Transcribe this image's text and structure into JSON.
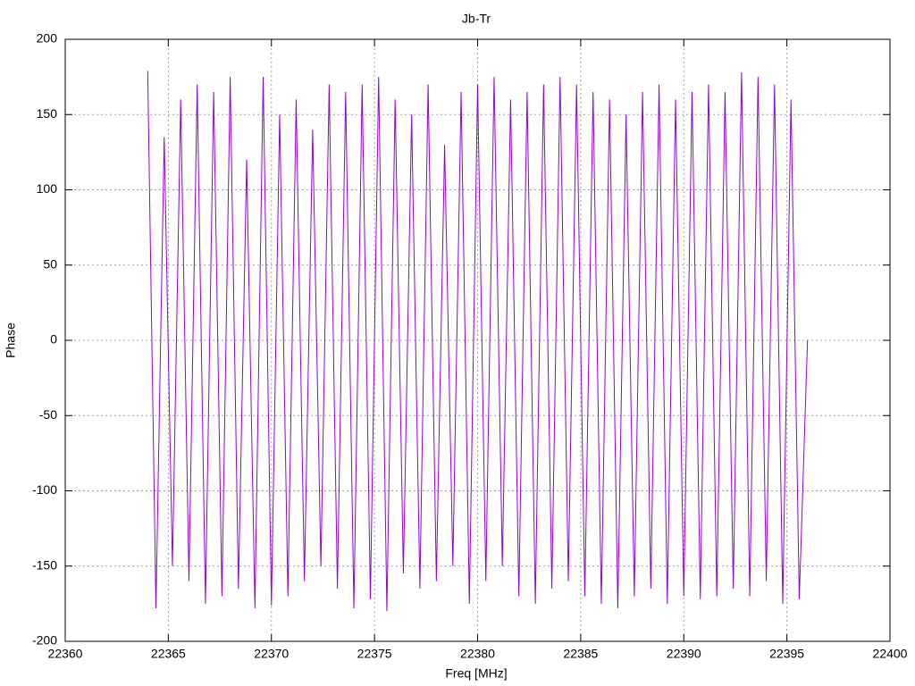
{
  "chart_data": {
    "type": "line",
    "title": "Jb-Tr",
    "x_label": "Freq [MHz]",
    "y_label": "Phase",
    "xlim": [
      22360,
      22400
    ],
    "xticks": [
      22360,
      22365,
      22370,
      22375,
      22380,
      22385,
      22390,
      22395,
      22400
    ],
    "ylim": [
      -200,
      200
    ],
    "yticks": [
      -200,
      -150,
      -100,
      -50,
      0,
      50,
      100,
      150,
      200
    ],
    "grid": true,
    "x": [
      22364,
      22364.4,
      22364.8,
      22365.2,
      22365.6,
      22366,
      22366.4,
      22366.8,
      22367.2,
      22367.6,
      22368,
      22368.4,
      22368.8,
      22369.2,
      22369.6,
      22370,
      22370.4,
      22370.8,
      22371.2,
      22371.6,
      22372,
      22372.4,
      22372.8,
      22373.2,
      22373.6,
      22374,
      22374.4,
      22374.8,
      22375.2,
      22375.6,
      22376,
      22376.4,
      22376.8,
      22377.2,
      22377.6,
      22378,
      22378.4,
      22378.8,
      22379.2,
      22379.6,
      22380,
      22380.4,
      22380.8,
      22381.2,
      22381.6,
      22382,
      22382.4,
      22382.8,
      22383.2,
      22383.6,
      22384,
      22384.4,
      22384.8,
      22385.2,
      22385.6,
      22386,
      22386.4,
      22386.8,
      22387.2,
      22387.6,
      22388,
      22388.4,
      22388.8,
      22389.2,
      22389.6,
      22390,
      22390.4,
      22390.8,
      22391.2,
      22391.6,
      22392,
      22392.4,
      22392.8,
      22393.2,
      22393.6,
      22394,
      22394.4,
      22394.8,
      22395.2,
      22395.6,
      22396
    ],
    "series": [
      {
        "color": "#9400d3",
        "values": [
          179,
          -178,
          135,
          -150,
          160,
          -160,
          170,
          -175,
          165,
          -170,
          175,
          -165,
          120,
          -178,
          175,
          -176,
          150,
          -170,
          160,
          -160,
          140,
          -150,
          170,
          -165,
          165,
          -178,
          170,
          -172,
          175,
          -180,
          160,
          -155,
          150,
          -165,
          170,
          -160,
          130,
          -150,
          165,
          -175,
          170,
          -160,
          175,
          -150,
          160,
          -170,
          165,
          -175,
          170,
          -165,
          175,
          -160,
          170,
          -170,
          165,
          -175,
          160,
          -178,
          150,
          -170,
          165,
          -165,
          170,
          -175,
          160,
          -170,
          165,
          -172,
          170,
          -170,
          165,
          -165,
          178,
          -170,
          175,
          -160,
          170,
          -175,
          160,
          -172,
          0
        ]
      }
    ]
  }
}
